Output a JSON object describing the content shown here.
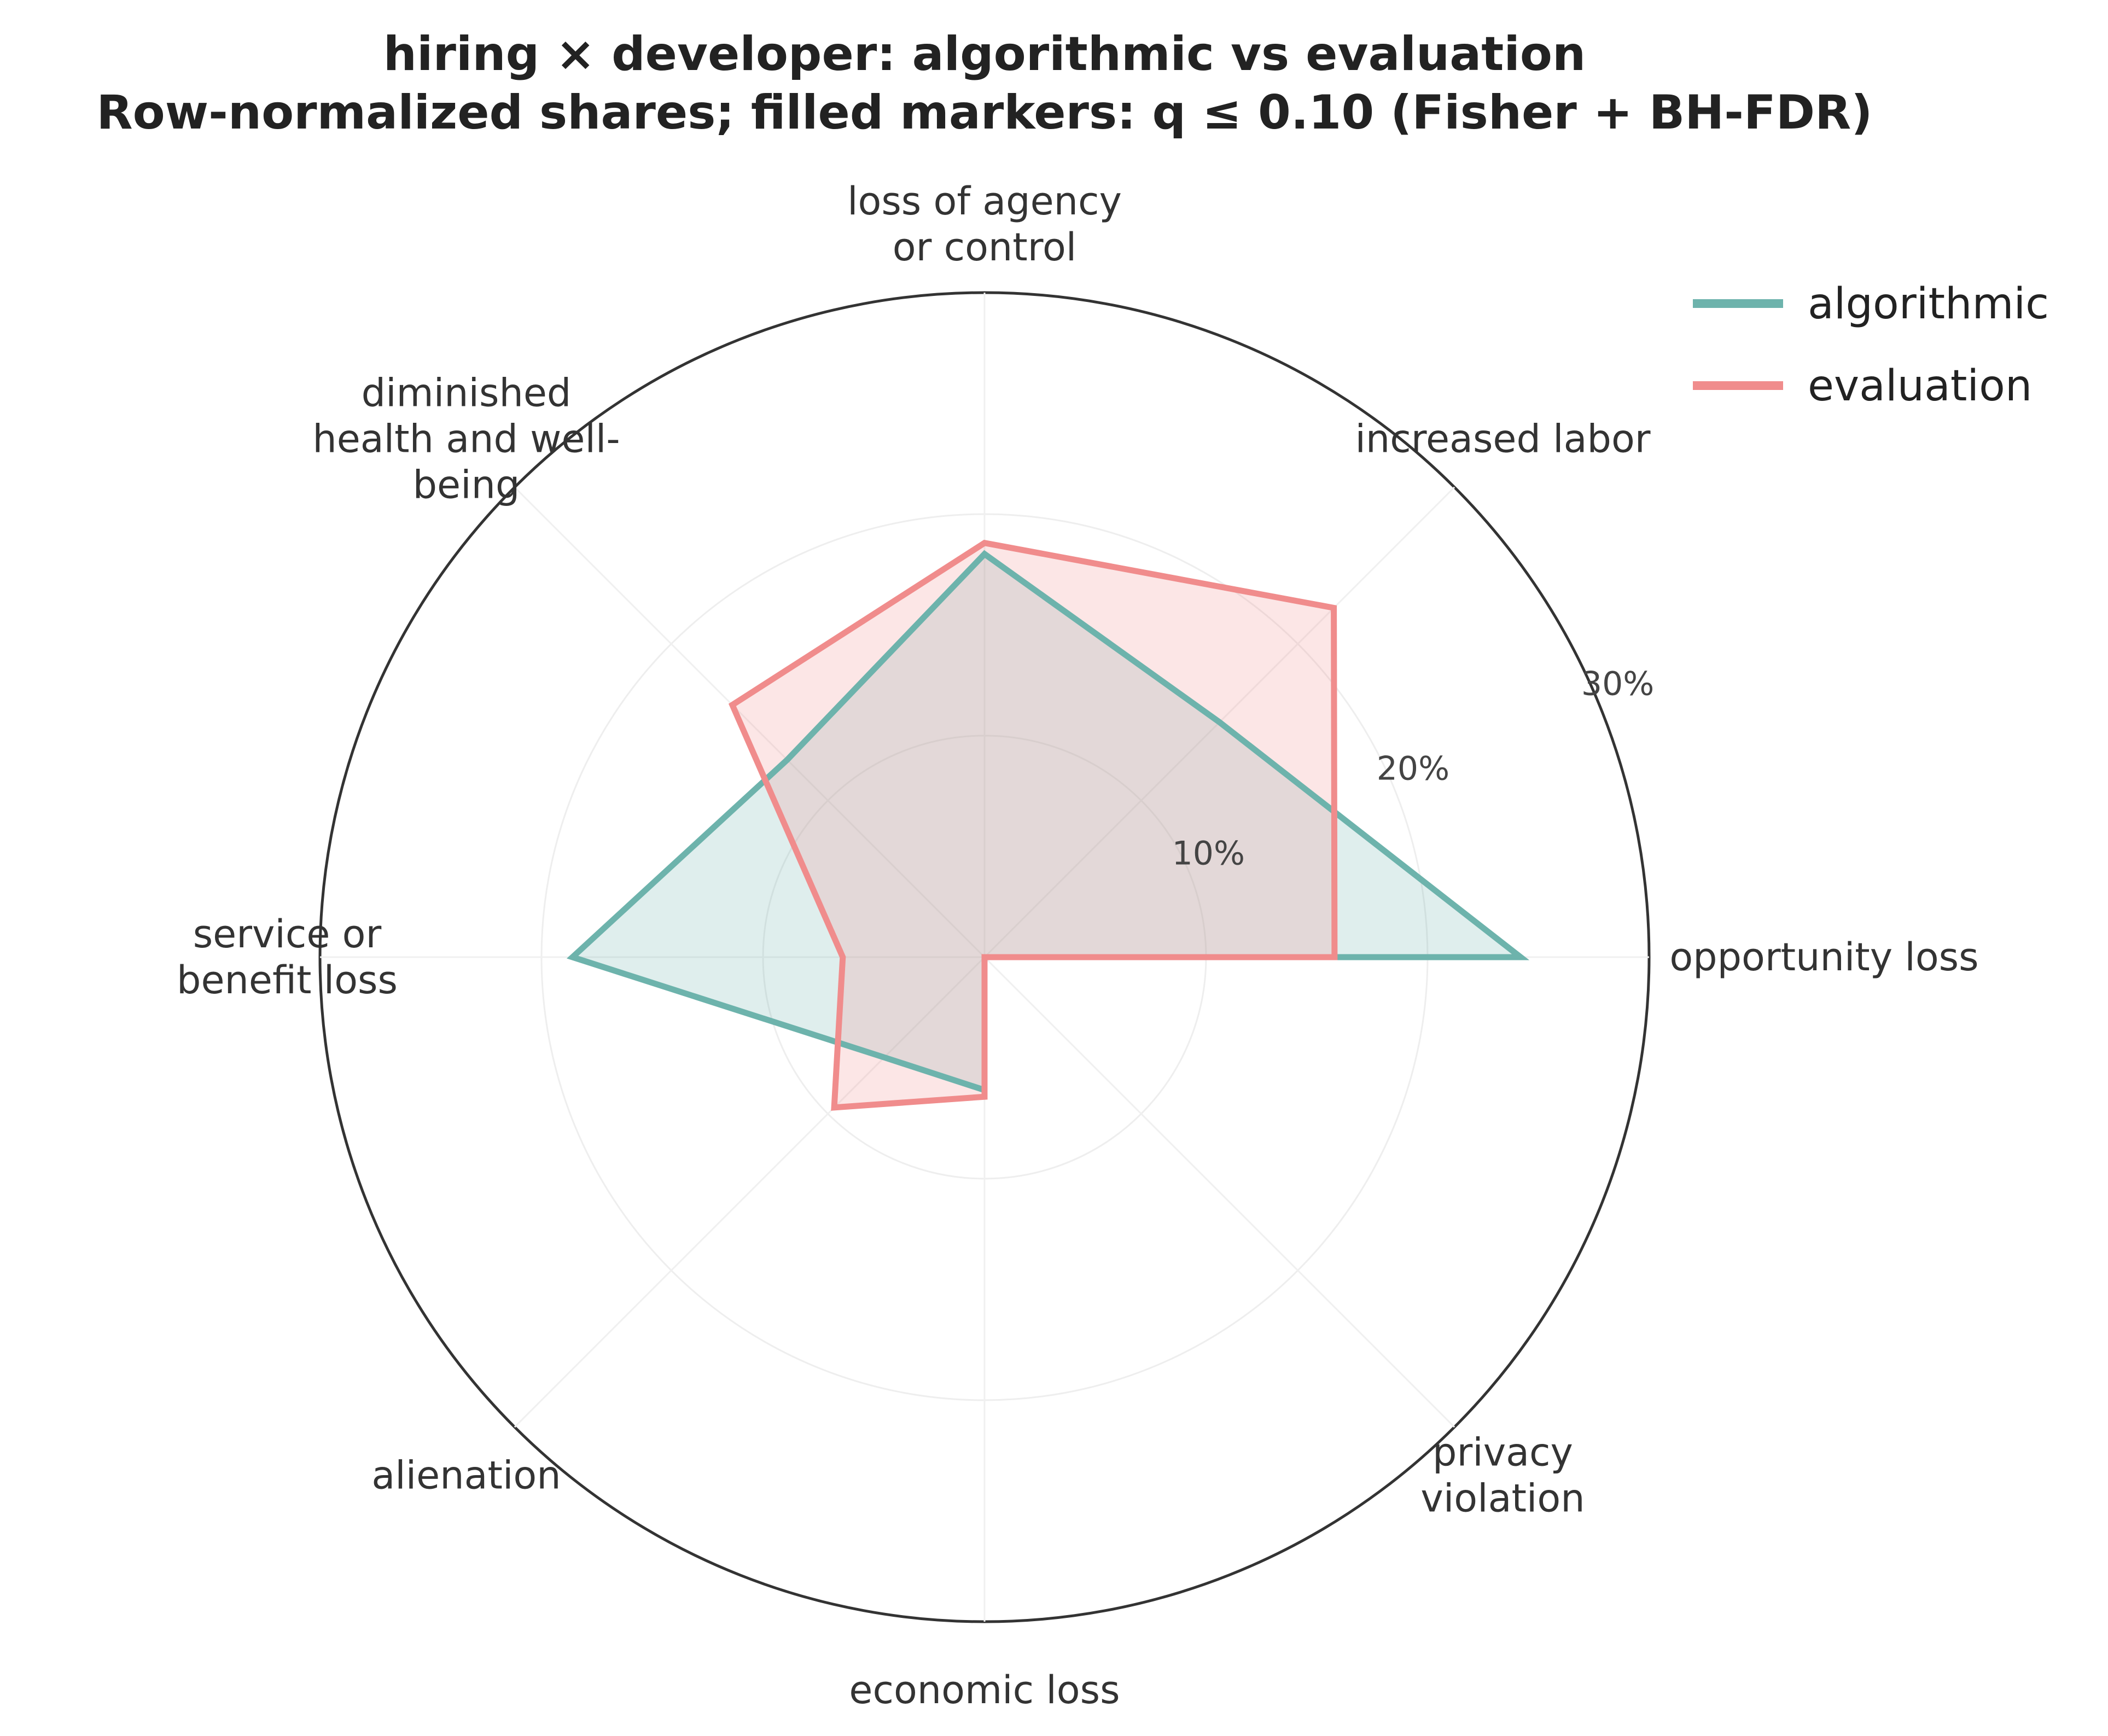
{
  "chart_data": {
    "type": "radar",
    "title": "hiring × developer: algorithmic vs evaluation",
    "subtitle": "Row-normalized shares; filled markers: q ≤ 0.10 (Fisher + BH-FDR)",
    "categories": [
      "opportunity loss",
      "increased labor",
      "loss of agency\nor control",
      "diminished\nhealth and well-\nbeing",
      "service or\nbenefit loss",
      "alienation",
      "economic loss",
      "privacy\nviolation"
    ],
    "series": [
      {
        "name": "algorithmic",
        "color": "#6db3ac",
        "values": [
          24.2,
          15.0,
          18.2,
          12.6,
          18.6,
          6.4,
          6.0,
          0.0
        ]
      },
      {
        "name": "evaluation",
        "color": "#f08c8c",
        "values": [
          15.8,
          22.3,
          18.7,
          16.1,
          6.4,
          9.6,
          6.3,
          0.0
        ]
      }
    ],
    "rlim": [
      0,
      30
    ],
    "rticks": [
      10,
      20,
      30
    ],
    "rtick_labels": [
      "10%",
      "20%",
      "30%"
    ],
    "legend_position": "top-right",
    "grid": true
  }
}
